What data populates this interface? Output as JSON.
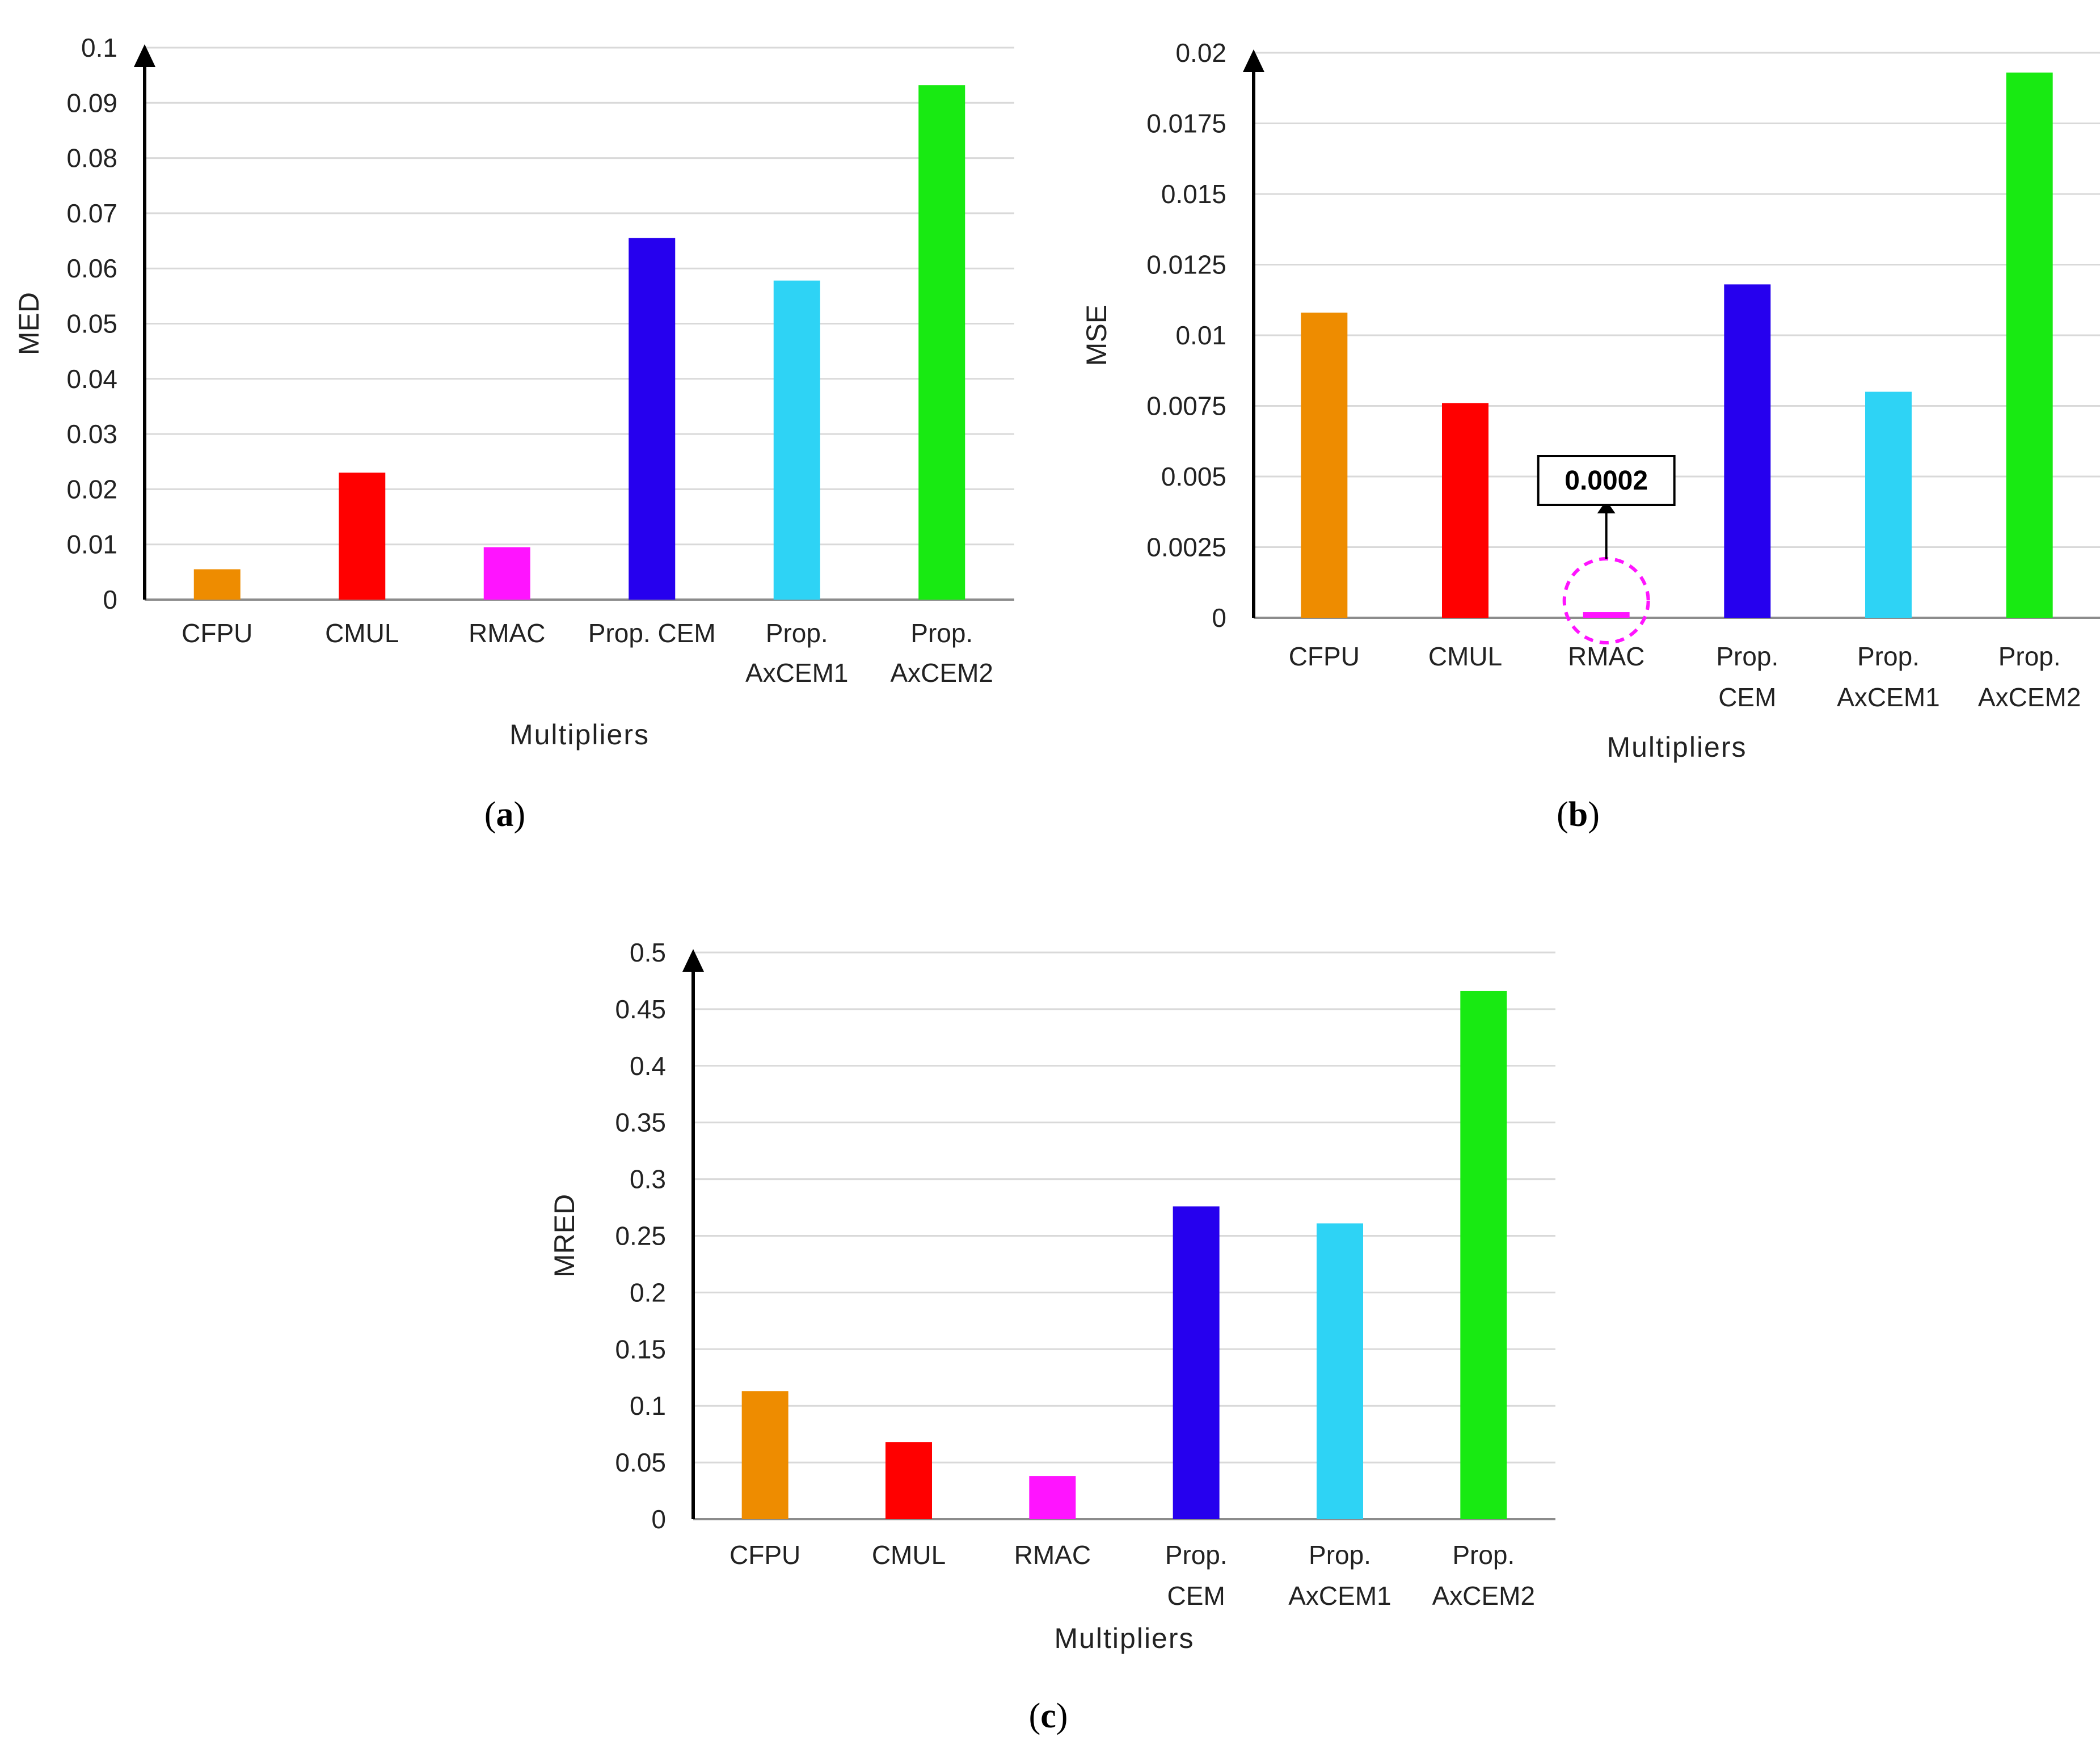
{
  "chart_data": [
    {
      "type": "bar",
      "panel": "a",
      "caption_letter": "a",
      "categories": [
        [
          "CFPU"
        ],
        [
          "CMUL"
        ],
        [
          "RMAC"
        ],
        [
          "Prop. CEM"
        ],
        [
          "Prop.",
          "AxCEM1"
        ],
        [
          "Prop.",
          "AxCEM2"
        ]
      ],
      "values": [
        0.0055,
        0.023,
        0.0095,
        0.0655,
        0.0578,
        0.0932
      ],
      "colors": [
        "#EE8C00",
        "#FF0000",
        "#FF14FF",
        "#2600EE",
        "#2ED3F5",
        "#18EA12"
      ],
      "xlabel": "Multipliers",
      "ylabel": "MED",
      "ylim": [
        0,
        0.1
      ],
      "yticks": [
        "0",
        "0.01",
        "0.02",
        "0.03",
        "0.04",
        "0.05",
        "0.06",
        "0.07",
        "0.08",
        "0.09",
        "0.1"
      ],
      "grid": true
    },
    {
      "type": "bar",
      "panel": "b",
      "caption_letter": "b",
      "categories": [
        [
          "CFPU"
        ],
        [
          "CMUL"
        ],
        [
          "RMAC"
        ],
        [
          "Prop.",
          "CEM"
        ],
        [
          "Prop.",
          "AxCEM1"
        ],
        [
          "Prop.",
          "AxCEM2"
        ]
      ],
      "values": [
        0.0108,
        0.0076,
        0.0002,
        0.0118,
        0.008,
        0.0193
      ],
      "colors": [
        "#EE8C00",
        "#FF0000",
        "#FF14FF",
        "#2600EE",
        "#2ED3F5",
        "#18EA12"
      ],
      "xlabel": "Multipliers",
      "ylabel": "MSE",
      "ylim": [
        0,
        0.02
      ],
      "yticks": [
        "0",
        "0.0025",
        "0.005",
        "0.0075",
        "0.01",
        "0.0125",
        "0.015",
        "0.0175",
        "0.02"
      ],
      "grid": true,
      "annotation": {
        "category_index": 2,
        "text": "0.0002"
      }
    },
    {
      "type": "bar",
      "panel": "c",
      "caption_letter": "c",
      "categories": [
        [
          "CFPU"
        ],
        [
          "CMUL"
        ],
        [
          "RMAC"
        ],
        [
          "Prop.",
          "CEM"
        ],
        [
          "Prop.",
          "AxCEM1"
        ],
        [
          "Prop.",
          "AxCEM2"
        ]
      ],
      "values": [
        0.113,
        0.068,
        0.038,
        0.276,
        0.261,
        0.466
      ],
      "colors": [
        "#EE8C00",
        "#FF0000",
        "#FF14FF",
        "#2600EE",
        "#2ED3F5",
        "#18EA12"
      ],
      "xlabel": "Multipliers",
      "ylabel": "MRED",
      "ylim": [
        0,
        0.5
      ],
      "yticks": [
        "0",
        "0.05",
        "0.1",
        "0.15",
        "0.2",
        "0.25",
        "0.3",
        "0.35",
        "0.4",
        "0.45",
        "0.5"
      ],
      "grid": true
    }
  ]
}
